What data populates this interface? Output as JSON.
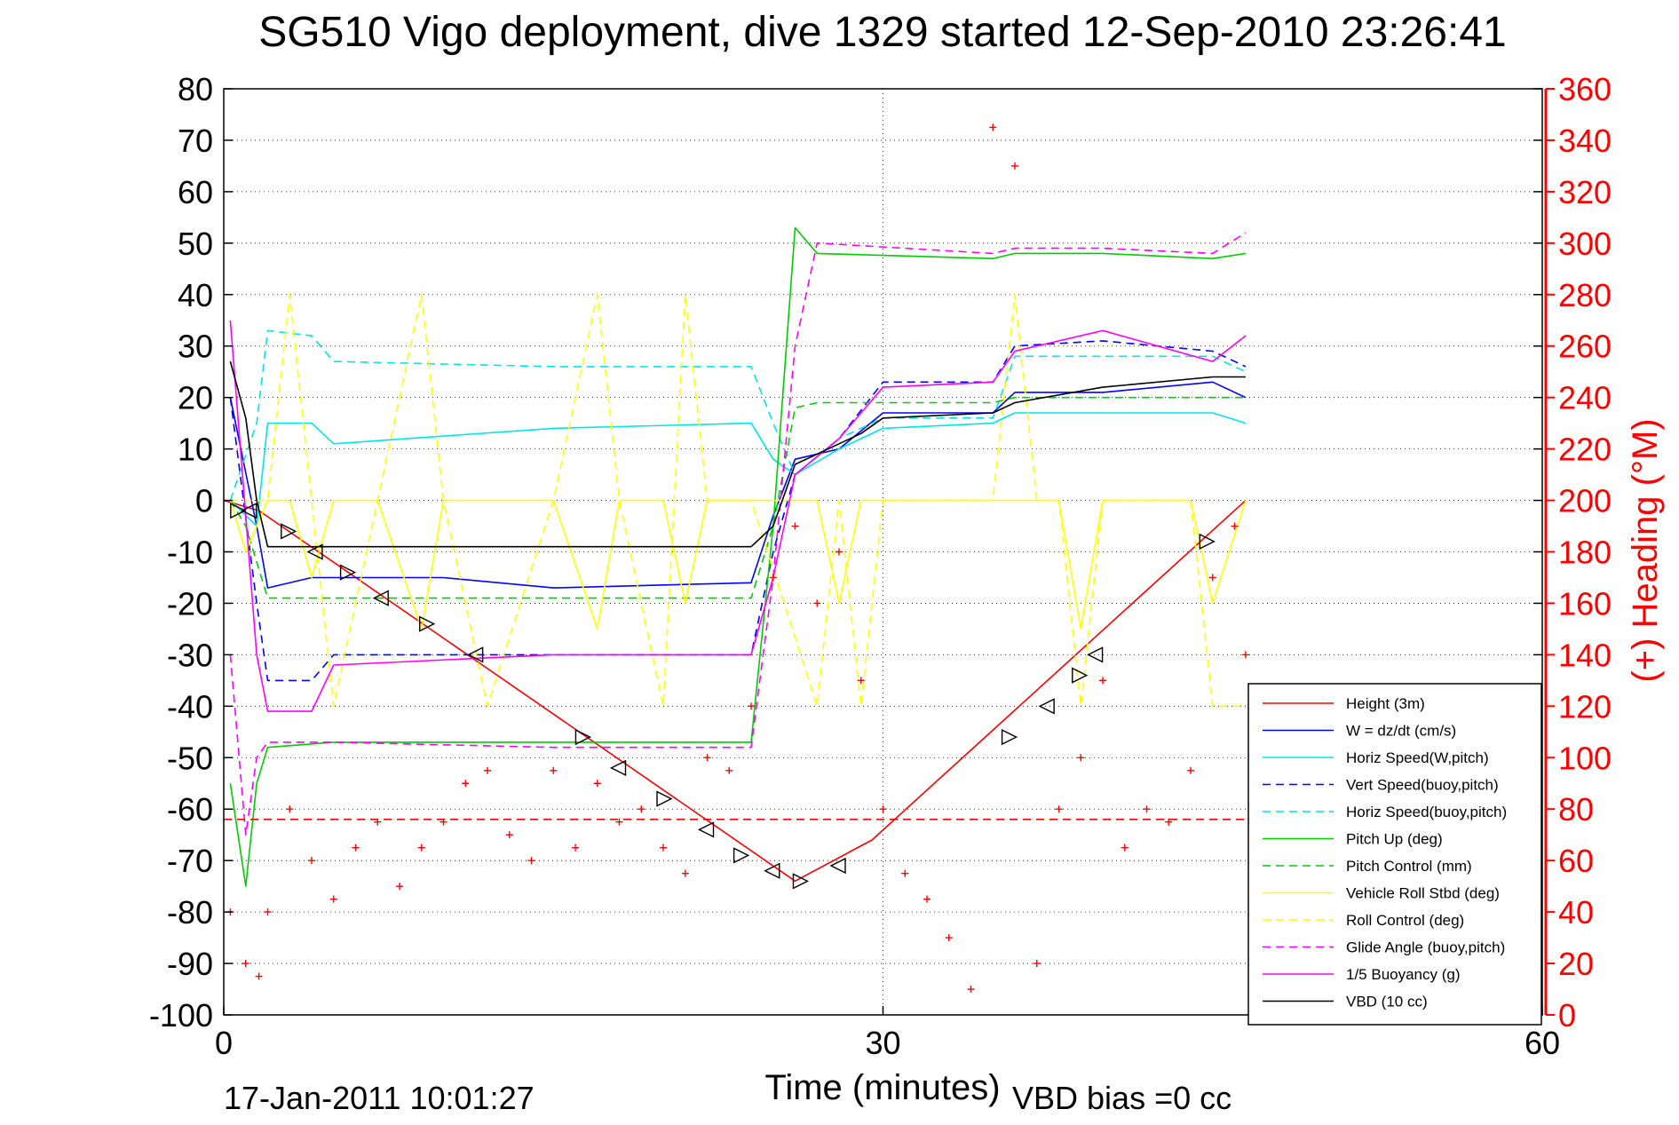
{
  "chart_data": {
    "type": "line",
    "title": "SG510 Vigo deployment, dive 1329 started 12-Sep-2010 23:26:41",
    "xlabel": "Time (minutes)",
    "ylabel_right": "(+) Heading (°M)",
    "footer_left": "17-Jan-2011 10:01:27",
    "footer_right": "VBD bias =0 cc",
    "xlim": [
      0,
      60
    ],
    "ylim": [
      -100,
      80
    ],
    "ylim_right": [
      0,
      360
    ],
    "xticks": [
      "0",
      "30",
      "60"
    ],
    "yticks": [
      "80",
      "70",
      "60",
      "50",
      "40",
      "30",
      "20",
      "10",
      "0",
      "-10",
      "-20",
      "-30",
      "-40",
      "-50",
      "-60",
      "-70",
      "-80",
      "-90",
      "-100"
    ],
    "yticks_right": [
      "360",
      "340",
      "320",
      "300",
      "280",
      "260",
      "240",
      "220",
      "200",
      "180",
      "160",
      "140",
      "120",
      "100",
      "80",
      "60",
      "40",
      "20",
      "0"
    ],
    "grid": "dotted",
    "legend_position": "bottom-right",
    "colors": {
      "height": "#ff0000",
      "w": "#0000ff",
      "horiz": "#00e5e5",
      "pitch": "#00cc00",
      "roll": "#ffff00",
      "glide": "#ff00ff",
      "vbd": "#000000",
      "right_axis": "#ff0000"
    },
    "series": [
      {
        "name": "Height (3m)",
        "style": "solid",
        "color": "#ff0000",
        "x": [
          0,
          1.6,
          26,
          29.5,
          46.5
        ],
        "y": [
          0,
          -2,
          -74,
          -66,
          0
        ]
      },
      {
        "name": "W = dz/dt (cm/s)",
        "style": "solid",
        "color": "#0000ff",
        "x": [
          0.3,
          1.5,
          2,
          4,
          10,
          15,
          24,
          25,
          26,
          28,
          30,
          35,
          36,
          40,
          45,
          46.5
        ],
        "y": [
          20,
          -5,
          -17,
          -15,
          -15,
          -17,
          -16,
          -3,
          8,
          10,
          17,
          17,
          21,
          21,
          23,
          20
        ]
      },
      {
        "name": "Horiz Speed(W,pitch)",
        "style": "solid",
        "color": "#00e5e5",
        "x": [
          0.3,
          1.5,
          2,
          4,
          5,
          15,
          24,
          25,
          26,
          28,
          30,
          35,
          36,
          40,
          45,
          46.5
        ],
        "y": [
          0,
          -5,
          15,
          15,
          11,
          14,
          15,
          8,
          5,
          10,
          14,
          15,
          17,
          17,
          17,
          15
        ]
      },
      {
        "name": "Vert Speed(buoy,pitch)",
        "style": "dashed",
        "color": "#0000ff",
        "x": [
          0.3,
          1.5,
          2,
          4,
          5,
          15,
          24,
          25,
          26,
          28,
          30,
          35,
          36,
          40,
          45,
          46.5
        ],
        "y": [
          20,
          -20,
          -35,
          -35,
          -30,
          -30,
          -30,
          -10,
          5,
          12,
          23,
          23,
          30,
          31,
          29,
          26
        ]
      },
      {
        "name": "Horiz Speed(buoy,pitch)",
        "style": "dashed",
        "color": "#00e5e5",
        "x": [
          0.3,
          1.5,
          2,
          4,
          5,
          15,
          24,
          25,
          26,
          28,
          30,
          35,
          36,
          40,
          45,
          46.5
        ],
        "y": [
          0,
          15,
          33,
          32,
          27,
          26,
          26,
          15,
          5,
          12,
          16,
          16,
          28,
          28,
          28,
          25
        ]
      },
      {
        "name": "Pitch Up (deg)",
        "style": "solid",
        "color": "#00cc00",
        "x": [
          0.3,
          1,
          1.5,
          2,
          5,
          15,
          24,
          25,
          26,
          27,
          35,
          36,
          40,
          45,
          46.5
        ],
        "y": [
          -55,
          -75,
          -55,
          -48,
          -47,
          -47,
          -47,
          -5,
          53,
          48,
          47,
          48,
          48,
          47,
          48
        ]
      },
      {
        "name": "Pitch Control (mm)",
        "style": "dashed",
        "color": "#00cc00",
        "x": [
          0.3,
          1,
          2,
          24,
          25,
          26,
          27,
          35,
          36,
          46.5
        ],
        "y": [
          0,
          -5,
          -19,
          -19,
          -5,
          18,
          19,
          19,
          20,
          20
        ]
      },
      {
        "name": "Vehicle Roll Stbd (deg)",
        "style": "solid",
        "color": "#ffff00",
        "x": [
          0.3,
          1,
          2,
          3,
          4,
          5,
          7,
          9,
          10,
          12,
          15,
          17,
          18,
          20,
          21,
          22,
          24,
          27,
          28,
          29,
          30,
          35,
          36,
          37,
          38,
          39,
          40,
          44,
          45,
          46.5
        ],
        "y": [
          0,
          -10,
          0,
          0,
          -15,
          0,
          0,
          -25,
          0,
          0,
          0,
          -25,
          0,
          0,
          -20,
          0,
          0,
          0,
          -20,
          0,
          0,
          0,
          0,
          0,
          0,
          -25,
          0,
          0,
          -20,
          0
        ]
      },
      {
        "name": "Roll Control (deg)",
        "style": "dashed",
        "color": "#ffff00",
        "x": [
          0.3,
          2,
          3,
          4,
          5,
          7,
          9,
          10,
          12,
          15,
          17,
          18,
          20,
          21,
          22,
          24,
          27,
          28,
          29,
          30,
          35,
          36,
          37,
          38,
          39,
          40,
          44,
          45,
          46.5
        ],
        "y": [
          0,
          0,
          40,
          0,
          -40,
          0,
          40,
          0,
          -40,
          0,
          40,
          0,
          -40,
          40,
          0,
          0,
          -40,
          0,
          -40,
          0,
          0,
          40,
          0,
          0,
          -40,
          0,
          0,
          -40,
          -40
        ]
      },
      {
        "name": "Glide Angle (buoy,pitch)",
        "style": "dashed",
        "color": "#ff00ff",
        "x": [
          0.3,
          1,
          1.5,
          2,
          5,
          15,
          24,
          25,
          26,
          27,
          35,
          36,
          40,
          45,
          46.5
        ],
        "y": [
          -30,
          -65,
          -50,
          -47,
          -47,
          -48,
          -48,
          -15,
          30,
          50,
          48,
          49,
          49,
          48,
          52
        ]
      },
      {
        "name": "1/5 Buoyancy (g)",
        "style": "solid",
        "color": "#ff00ff",
        "x": [
          0.3,
          1.5,
          2,
          4,
          5,
          15,
          24,
          25,
          26,
          28,
          30,
          35,
          36,
          40,
          45,
          46.5
        ],
        "y": [
          35,
          -30,
          -41,
          -41,
          -32,
          -30,
          -30,
          -15,
          5,
          12,
          22,
          23,
          29,
          33,
          27,
          32
        ]
      },
      {
        "name": "VBD (10 cc)",
        "style": "solid",
        "color": "#000000",
        "x": [
          0.3,
          1,
          1.5,
          2,
          24,
          25,
          26,
          28,
          29,
          30,
          35,
          36,
          40,
          45,
          46.5
        ],
        "y": [
          27,
          16,
          0,
          -9,
          -9,
          -5,
          7,
          11,
          13,
          16,
          17,
          19,
          22,
          24,
          24
        ]
      },
      {
        "name": "",
        "style": "dashed",
        "color": "#ff0000",
        "x": [
          0,
          60
        ],
        "y": [
          -62,
          -62
        ]
      }
    ],
    "heading_points": {
      "color": "#ff0000",
      "marker": "+",
      "axis": "right",
      "x": [
        0.3,
        1,
        1.6,
        2,
        3,
        4,
        5,
        6,
        7,
        8,
        9,
        10,
        11,
        12,
        13,
        14,
        15,
        16,
        17,
        18,
        19,
        20,
        21,
        22,
        23,
        24,
        25,
        26,
        27,
        28,
        29,
        30,
        31,
        32,
        33,
        34,
        35,
        36,
        37,
        38,
        39,
        40,
        41,
        42,
        43,
        44,
        45,
        46,
        46.5
      ],
      "y": [
        40,
        20,
        15,
        40,
        80,
        60,
        45,
        65,
        75,
        50,
        65,
        75,
        90,
        95,
        70,
        60,
        95,
        65,
        90,
        75,
        80,
        65,
        55,
        100,
        95,
        120,
        170,
        190,
        160,
        180,
        130,
        80,
        55,
        45,
        30,
        10,
        345,
        330,
        20,
        80,
        100,
        130,
        65,
        80,
        75,
        95,
        170,
        190,
        140
      ]
    },
    "event_markers": {
      "color": "#000000",
      "marker": "triangle",
      "x": [
        0.6,
        1.2,
        2.9,
        4.2,
        5.6,
        7.2,
        9.2,
        11.5,
        16.3,
        18,
        20,
        22,
        23.5,
        25,
        26.2,
        28,
        35.7,
        37.5,
        38.9,
        39.7,
        44.7
      ],
      "y": [
        -2,
        -2,
        -6,
        -10,
        -14,
        -19,
        -24,
        -30,
        -46,
        -52,
        -58,
        -64,
        -69,
        -72,
        -74,
        -71,
        -46,
        -40,
        -34,
        -30,
        -8
      ]
    }
  }
}
